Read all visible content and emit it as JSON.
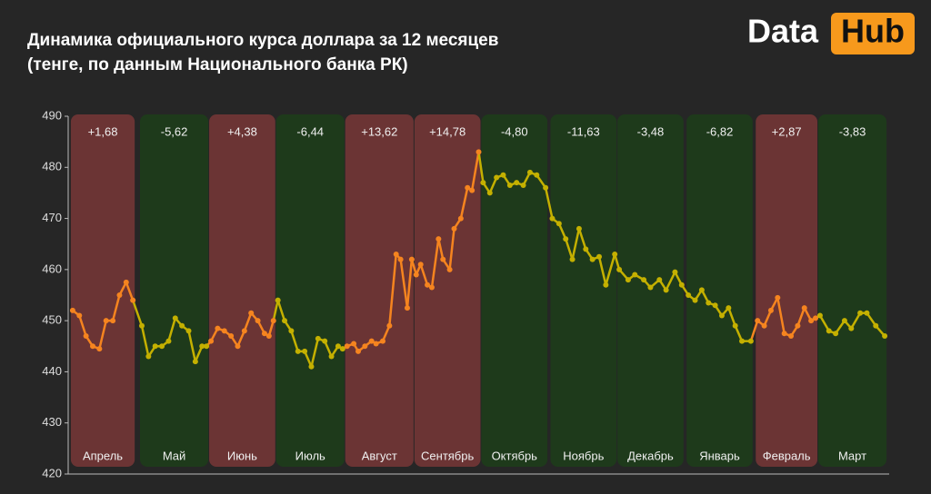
{
  "brand": [
    "Data",
    "Hub"
  ],
  "chart_data": {
    "type": "line",
    "title": "Динамика официального курса доллара за 12 месяцев",
    "subtitle": "(тенге, по данным Национального банка РК)",
    "ylim": [
      420,
      490
    ],
    "yticks": [
      420,
      430,
      440,
      450,
      460,
      470,
      480,
      490
    ],
    "xlim": [
      -2,
      366
    ],
    "categories": [
      "Апрель",
      "Май",
      "Июнь",
      "Июль",
      "Август",
      "Сентябрь",
      "Октябрь",
      "Ноябрь",
      "Декабрь",
      "Январь",
      "Февраль",
      "Март"
    ],
    "changes": [
      1.68,
      -5.62,
      4.38,
      -6.44,
      13.62,
      14.78,
      -4.8,
      -11.63,
      -3.48,
      -6.82,
      2.87,
      -3.83
    ],
    "value_labels": [
      "+1,68",
      "-5,62",
      "+4,38",
      "-6,44",
      "+13,62",
      "+14,78",
      "-4,80",
      "-11,63",
      "-3,48",
      "-6,82",
      "+2,87",
      "-3,83"
    ],
    "band_colors": [
      "#6b3434",
      "#1e3a1b",
      "#6b3434",
      "#1e3a1b",
      "#6b3434",
      "#6b3434",
      "#1e3a1b",
      "#1e3a1b",
      "#1e3a1b",
      "#1e3a1b",
      "#6b3434",
      "#1e3a1b"
    ],
    "series": [
      {
        "color": "#f5841f",
        "x": [
          0,
          3,
          6,
          9,
          12,
          15,
          18,
          21,
          24,
          27
        ],
        "values": [
          452,
          451,
          447,
          445,
          444.5,
          450,
          450,
          455,
          457.5,
          454
        ]
      },
      {
        "color": "#c4b000",
        "x": [
          31,
          34,
          37,
          40,
          43,
          46,
          49,
          52,
          55,
          58,
          60
        ],
        "values": [
          449,
          443,
          445,
          445,
          446,
          450.5,
          449,
          448,
          442,
          445,
          445
        ]
      },
      {
        "color": "#f5841f",
        "x": [
          62,
          65,
          68,
          71,
          74,
          77,
          80,
          83,
          86,
          88,
          90
        ],
        "values": [
          446,
          448.5,
          448,
          447,
          445,
          448,
          451.5,
          450,
          447.5,
          447,
          450
        ]
      },
      {
        "color": "#c4b000",
        "x": [
          92,
          95,
          98,
          101,
          104,
          107,
          110,
          113,
          116,
          119,
          121
        ],
        "values": [
          454,
          450,
          448,
          444,
          444,
          441,
          446.5,
          446,
          443,
          445,
          444.5
        ]
      },
      {
        "color": "#f5841f",
        "x": [
          123,
          126,
          128,
          131,
          134,
          136,
          139,
          142,
          145,
          147,
          150,
          152
        ],
        "values": [
          445,
          445.5,
          444,
          445,
          446,
          445.5,
          446,
          449,
          463,
          462,
          452.5,
          462
        ]
      },
      {
        "color": "#f5841f",
        "x": [
          154,
          156,
          159,
          161,
          164,
          166,
          169,
          171,
          174,
          177,
          179,
          182
        ],
        "values": [
          459,
          461,
          457,
          456.5,
          466,
          462,
          460,
          468,
          470,
          476,
          475.5,
          483
        ]
      },
      {
        "color": "#c4b000",
        "x": [
          184,
          187,
          190,
          193,
          196,
          199,
          202,
          205,
          208,
          212
        ],
        "values": [
          477,
          475,
          478,
          478.5,
          476.5,
          477,
          476.5,
          479,
          478.5,
          476
        ]
      },
      {
        "color": "#c4b000",
        "x": [
          215,
          218,
          221,
          224,
          227,
          230,
          233,
          236,
          239,
          243
        ],
        "values": [
          470,
          469,
          466,
          462,
          468,
          464,
          462,
          462.5,
          457,
          463
        ]
      },
      {
        "color": "#c4b000",
        "x": [
          245,
          249,
          252,
          256,
          259,
          263,
          266,
          270,
          273
        ],
        "values": [
          460,
          458,
          459,
          458,
          456.5,
          458,
          456,
          459.5,
          457
        ]
      },
      {
        "color": "#c4b000",
        "x": [
          276,
          279,
          282,
          285,
          288,
          291,
          294,
          297,
          300,
          304
        ],
        "values": [
          455,
          454,
          456,
          453.5,
          453,
          451,
          452.5,
          449,
          446,
          446
        ]
      },
      {
        "color": "#f5841f",
        "x": [
          307,
          310,
          313,
          316,
          319,
          322,
          325,
          328,
          331,
          333
        ],
        "values": [
          450,
          449,
          452,
          454.5,
          447.5,
          447,
          449,
          452.5,
          450,
          450.5
        ]
      },
      {
        "color": "#c4b000",
        "x": [
          335,
          339,
          342,
          346,
          349,
          353,
          356,
          360,
          364
        ],
        "values": [
          451,
          448,
          447.5,
          450,
          448.5,
          451.5,
          451.5,
          449,
          447
        ]
      }
    ]
  }
}
